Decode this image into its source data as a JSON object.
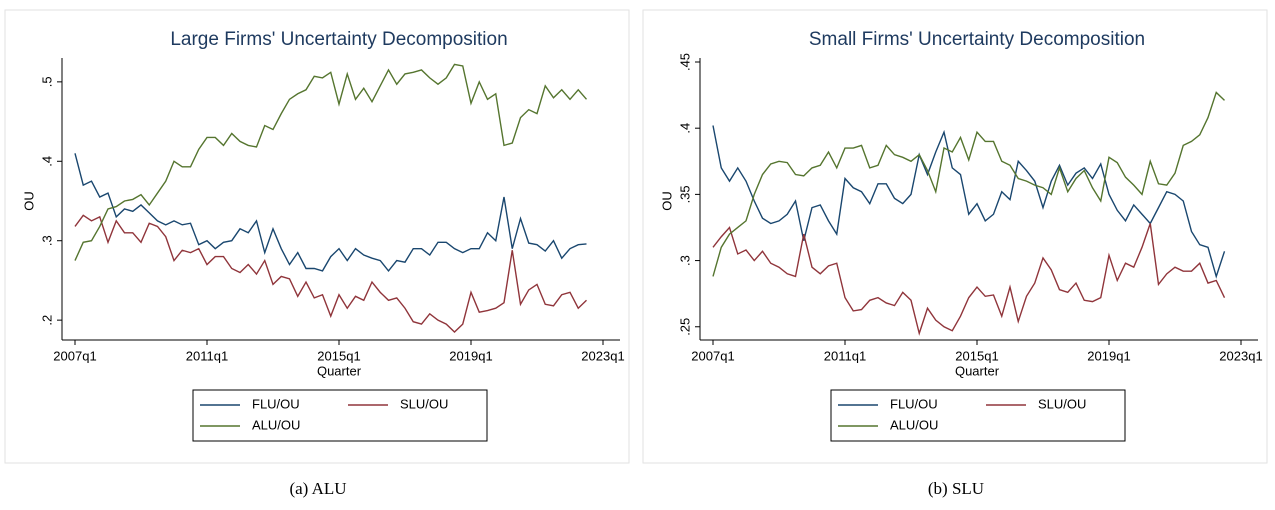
{
  "chart_data": [
    {
      "type": "line",
      "title": "Large Firms' Uncertainty Decomposition",
      "caption": "(a) ALU",
      "xlabel": "Quarter",
      "ylabel": "OU",
      "legend": "bottom",
      "x": [
        "2007q1",
        "2007q2",
        "2007q3",
        "2007q4",
        "2008q1",
        "2008q2",
        "2008q3",
        "2008q4",
        "2009q1",
        "2009q2",
        "2009q3",
        "2009q4",
        "2010q1",
        "2010q2",
        "2010q3",
        "2010q4",
        "2011q1",
        "2011q2",
        "2011q3",
        "2011q4",
        "2012q1",
        "2012q2",
        "2012q3",
        "2012q4",
        "2013q1",
        "2013q2",
        "2013q3",
        "2013q4",
        "2014q1",
        "2014q2",
        "2014q3",
        "2014q4",
        "2015q1",
        "2015q2",
        "2015q3",
        "2015q4",
        "2016q1",
        "2016q2",
        "2016q3",
        "2016q4",
        "2017q1",
        "2017q2",
        "2017q3",
        "2017q4",
        "2018q1",
        "2018q2",
        "2018q3",
        "2018q4",
        "2019q1",
        "2019q2",
        "2019q3",
        "2019q4",
        "2020q1",
        "2020q2",
        "2020q3",
        "2020q4",
        "2021q1",
        "2021q2",
        "2021q3",
        "2021q4",
        "2022q1",
        "2022q2",
        "2022q3"
      ],
      "xlim": [
        "2007q1",
        "2023q1"
      ],
      "xticks": [
        "2007q1",
        "2011q1",
        "2015q1",
        "2019q1",
        "2023q1"
      ],
      "ylim": [
        0.175,
        0.525
      ],
      "yticks": [
        {
          "value": 0.2,
          "label": ".2"
        },
        {
          "value": 0.3,
          "label": ".3"
        },
        {
          "value": 0.4,
          "label": ".4"
        },
        {
          "value": 0.5,
          "label": ".5"
        }
      ],
      "series": [
        {
          "name": "FLU/OU",
          "color": "#1a476f",
          "values": [
            0.41,
            0.37,
            0.375,
            0.355,
            0.36,
            0.33,
            0.34,
            0.337,
            0.345,
            0.335,
            0.325,
            0.32,
            0.325,
            0.32,
            0.322,
            0.295,
            0.3,
            0.29,
            0.298,
            0.3,
            0.315,
            0.31,
            0.325,
            0.285,
            0.315,
            0.29,
            0.27,
            0.285,
            0.265,
            0.265,
            0.262,
            0.28,
            0.29,
            0.275,
            0.29,
            0.282,
            0.278,
            0.275,
            0.262,
            0.275,
            0.273,
            0.29,
            0.29,
            0.282,
            0.298,
            0.298,
            0.29,
            0.285,
            0.29,
            0.29,
            0.31,
            0.3,
            0.355,
            0.29,
            0.328,
            0.297,
            0.295,
            0.287,
            0.3,
            0.278,
            0.29,
            0.295,
            0.296
          ]
        },
        {
          "name": "SLU/OU",
          "color": "#90353b",
          "values": [
            0.318,
            0.332,
            0.325,
            0.33,
            0.298,
            0.325,
            0.31,
            0.31,
            0.298,
            0.322,
            0.318,
            0.305,
            0.275,
            0.288,
            0.285,
            0.29,
            0.27,
            0.28,
            0.28,
            0.265,
            0.26,
            0.27,
            0.258,
            0.275,
            0.245,
            0.255,
            0.252,
            0.23,
            0.248,
            0.228,
            0.232,
            0.205,
            0.232,
            0.215,
            0.23,
            0.225,
            0.248,
            0.235,
            0.225,
            0.228,
            0.215,
            0.198,
            0.195,
            0.208,
            0.2,
            0.195,
            0.185,
            0.195,
            0.235,
            0.21,
            0.212,
            0.215,
            0.222,
            0.288,
            0.22,
            0.238,
            0.245,
            0.22,
            0.218,
            0.232,
            0.235,
            0.215,
            0.225
          ]
        },
        {
          "name": "ALU/OU",
          "color": "#55752f",
          "values": [
            0.275,
            0.298,
            0.3,
            0.318,
            0.34,
            0.343,
            0.35,
            0.352,
            0.358,
            0.345,
            0.36,
            0.375,
            0.4,
            0.393,
            0.393,
            0.415,
            0.43,
            0.43,
            0.42,
            0.435,
            0.425,
            0.42,
            0.418,
            0.445,
            0.44,
            0.46,
            0.478,
            0.485,
            0.49,
            0.507,
            0.505,
            0.512,
            0.472,
            0.51,
            0.478,
            0.492,
            0.475,
            0.495,
            0.515,
            0.497,
            0.51,
            0.512,
            0.515,
            0.505,
            0.497,
            0.505,
            0.522,
            0.52,
            0.473,
            0.5,
            0.478,
            0.485,
            0.42,
            0.423,
            0.455,
            0.465,
            0.46,
            0.495,
            0.48,
            0.49,
            0.478,
            0.49,
            0.478
          ]
        }
      ]
    },
    {
      "type": "line",
      "title": "Small Firms' Uncertainty Decomposition",
      "caption": "(b) SLU",
      "xlabel": "Quarter",
      "ylabel": "OU",
      "legend": "bottom",
      "x": [
        "2007q1",
        "2007q2",
        "2007q3",
        "2007q4",
        "2008q1",
        "2008q2",
        "2008q3",
        "2008q4",
        "2009q1",
        "2009q2",
        "2009q3",
        "2009q4",
        "2010q1",
        "2010q2",
        "2010q3",
        "2010q4",
        "2011q1",
        "2011q2",
        "2011q3",
        "2011q4",
        "2012q1",
        "2012q2",
        "2012q3",
        "2012q4",
        "2013q1",
        "2013q2",
        "2013q3",
        "2013q4",
        "2014q1",
        "2014q2",
        "2014q3",
        "2014q4",
        "2015q1",
        "2015q2",
        "2015q3",
        "2015q4",
        "2016q1",
        "2016q2",
        "2016q3",
        "2016q4",
        "2017q1",
        "2017q2",
        "2017q3",
        "2017q4",
        "2018q1",
        "2018q2",
        "2018q3",
        "2018q4",
        "2019q1",
        "2019q2",
        "2019q3",
        "2019q4",
        "2020q1",
        "2020q2",
        "2020q3",
        "2020q4",
        "2021q1",
        "2021q2",
        "2021q3",
        "2021q4",
        "2022q1",
        "2022q2",
        "2022q3"
      ],
      "xlim": [
        "2007q1",
        "2023q1"
      ],
      "xticks": [
        "2007q1",
        "2011q1",
        "2015q1",
        "2019q1",
        "2023q1"
      ],
      "ylim": [
        0.24,
        0.45
      ],
      "yticks": [
        {
          "value": 0.25,
          "label": ".25"
        },
        {
          "value": 0.3,
          "label": ".3"
        },
        {
          "value": 0.35,
          "label": ".35"
        },
        {
          "value": 0.4,
          "label": ".4"
        },
        {
          "value": 0.45,
          "label": ".45"
        }
      ],
      "series": [
        {
          "name": "FLU/OU",
          "color": "#1a476f",
          "values": [
            0.402,
            0.37,
            0.36,
            0.37,
            0.36,
            0.345,
            0.332,
            0.328,
            0.33,
            0.335,
            0.345,
            0.315,
            0.34,
            0.342,
            0.33,
            0.32,
            0.362,
            0.355,
            0.352,
            0.343,
            0.358,
            0.358,
            0.347,
            0.343,
            0.35,
            0.38,
            0.365,
            0.382,
            0.397,
            0.37,
            0.365,
            0.335,
            0.343,
            0.33,
            0.335,
            0.352,
            0.346,
            0.375,
            0.368,
            0.36,
            0.34,
            0.36,
            0.372,
            0.357,
            0.366,
            0.37,
            0.362,
            0.373,
            0.35,
            0.338,
            0.33,
            0.342,
            0.335,
            0.328,
            0.34,
            0.352,
            0.35,
            0.345,
            0.322,
            0.312,
            0.31,
            0.288,
            0.307
          ]
        },
        {
          "name": "SLU/OU",
          "color": "#90353b",
          "values": [
            0.31,
            0.318,
            0.325,
            0.305,
            0.308,
            0.3,
            0.307,
            0.298,
            0.295,
            0.29,
            0.288,
            0.32,
            0.295,
            0.29,
            0.296,
            0.298,
            0.272,
            0.262,
            0.263,
            0.27,
            0.272,
            0.268,
            0.266,
            0.276,
            0.27,
            0.245,
            0.264,
            0.255,
            0.25,
            0.247,
            0.258,
            0.272,
            0.28,
            0.273,
            0.274,
            0.258,
            0.28,
            0.254,
            0.273,
            0.283,
            0.302,
            0.293,
            0.278,
            0.276,
            0.283,
            0.27,
            0.269,
            0.272,
            0.304,
            0.285,
            0.298,
            0.295,
            0.31,
            0.328,
            0.282,
            0.29,
            0.295,
            0.292,
            0.292,
            0.298,
            0.283,
            0.285,
            0.272
          ]
        },
        {
          "name": "ALU/OU",
          "color": "#55752f",
          "values": [
            0.288,
            0.31,
            0.32,
            0.325,
            0.33,
            0.35,
            0.365,
            0.373,
            0.375,
            0.374,
            0.365,
            0.364,
            0.37,
            0.372,
            0.382,
            0.37,
            0.385,
            0.385,
            0.387,
            0.37,
            0.372,
            0.387,
            0.38,
            0.378,
            0.375,
            0.38,
            0.368,
            0.352,
            0.385,
            0.382,
            0.393,
            0.376,
            0.397,
            0.39,
            0.39,
            0.375,
            0.372,
            0.362,
            0.36,
            0.357,
            0.355,
            0.35,
            0.37,
            0.352,
            0.362,
            0.368,
            0.355,
            0.345,
            0.378,
            0.374,
            0.363,
            0.357,
            0.35,
            0.375,
            0.358,
            0.357,
            0.366,
            0.387,
            0.39,
            0.395,
            0.408,
            0.427,
            0.421
          ]
        }
      ]
    }
  ]
}
